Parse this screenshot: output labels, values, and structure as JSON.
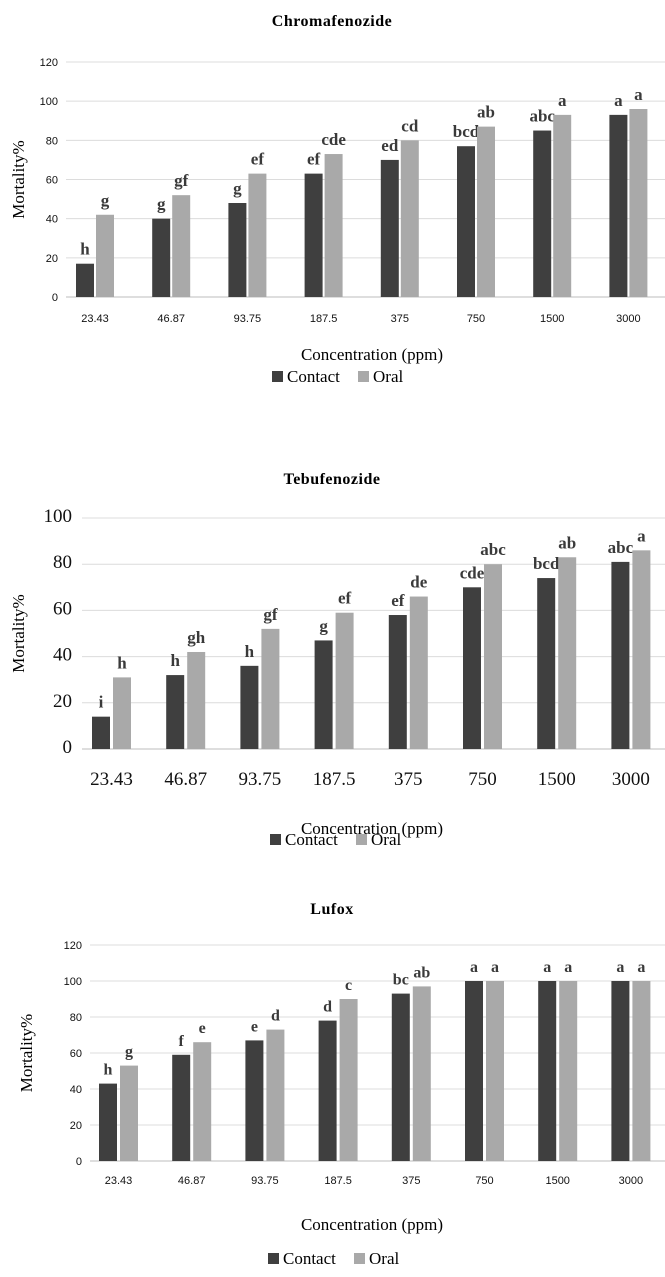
{
  "chart_data": [
    {
      "type": "bar",
      "title": "Chromafenozide",
      "xlabel": "Concentration (ppm)",
      "ylabel": "Mortality%",
      "ylim": [
        0,
        120
      ],
      "yticks": [
        0,
        20,
        40,
        60,
        80,
        100,
        120
      ],
      "categories": [
        "23.43",
        "46.87",
        "93.75",
        "187.5",
        "375",
        "750",
        "1500",
        "3000"
      ],
      "series": [
        {
          "name": "Contact",
          "color": "#3f3f3f",
          "values": [
            17,
            40,
            48,
            63,
            70,
            77,
            85,
            93
          ],
          "labels": [
            "h",
            "g",
            "g",
            "ef",
            "ed",
            "bcd",
            "abc",
            "a"
          ]
        },
        {
          "name": "Oral",
          "color": "#a9a9a9",
          "values": [
            42,
            52,
            63,
            73,
            80,
            87,
            93,
            96
          ],
          "labels": [
            "g",
            "gf",
            "ef",
            "cde",
            "cd",
            "ab",
            "a",
            "a"
          ]
        }
      ],
      "legend": "bottom",
      "grid": true
    },
    {
      "type": "bar",
      "title": "Tebufenozide",
      "xlabel": "Concentration (ppm)",
      "ylabel": "Mortality%",
      "ylim": [
        0,
        100
      ],
      "yticks": [
        0,
        20,
        40,
        60,
        80,
        100
      ],
      "categories": [
        "23.43",
        "46.87",
        "93.75",
        "187.5",
        "375",
        "750",
        "1500",
        "3000"
      ],
      "series": [
        {
          "name": "Contact",
          "color": "#3f3f3f",
          "values": [
            14,
            32,
            36,
            47,
            58,
            70,
            74,
            81
          ],
          "labels": [
            "i",
            "h",
            "h",
            "g",
            "ef",
            "cde",
            "bcd",
            "abc"
          ]
        },
        {
          "name": "Oral",
          "color": "#a9a9a9",
          "values": [
            31,
            42,
            52,
            59,
            66,
            80,
            83,
            86
          ],
          "labels": [
            "h",
            "gh",
            "gf",
            "ef",
            "de",
            "abc",
            "ab",
            "a"
          ]
        }
      ],
      "legend": "bottom",
      "grid": true
    },
    {
      "type": "bar",
      "title": "Lufox",
      "xlabel": "Concentration (ppm)",
      "ylabel": "Mortality%",
      "ylim": [
        0,
        120
      ],
      "yticks": [
        0,
        20,
        40,
        60,
        80,
        100,
        120
      ],
      "categories": [
        "23.43",
        "46.87",
        "93.75",
        "187.5",
        "375",
        "750",
        "1500",
        "3000"
      ],
      "series": [
        {
          "name": "Contact",
          "color": "#3f3f3f",
          "values": [
            43,
            59,
            67,
            78,
            93,
            100,
            100,
            100
          ],
          "labels": [
            "h",
            "f",
            "e",
            "d",
            "bc",
            "a",
            "a",
            "a"
          ]
        },
        {
          "name": "Oral",
          "color": "#a9a9a9",
          "values": [
            53,
            66,
            73,
            90,
            97,
            100,
            100,
            100
          ],
          "labels": [
            "g",
            "e",
            "d",
            "c",
            "ab",
            "a",
            "a",
            "a"
          ]
        }
      ],
      "legend": "bottom",
      "grid": true
    }
  ]
}
